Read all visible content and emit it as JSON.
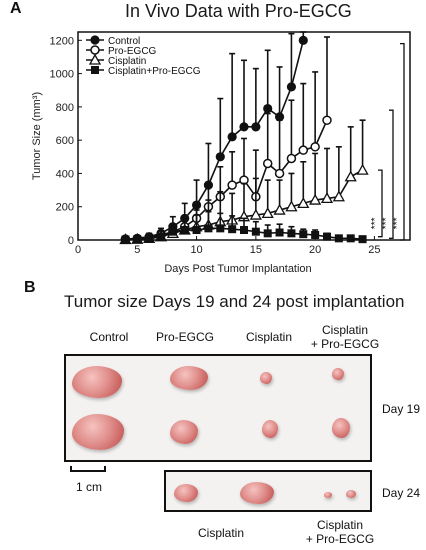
{
  "panel_a": {
    "letter": "A",
    "title": "In Vivo Data with Pro-EGCG"
  },
  "chart_data": {
    "type": "line",
    "title": "In Vivo Data with Pro-EGCG",
    "xlabel": "Days Post Tumor Implantation",
    "ylabel": "Tumor Size (mm³)",
    "xlim": [
      0,
      28
    ],
    "ylim": [
      0,
      1250
    ],
    "xticks": [
      0,
      5,
      10,
      15,
      20,
      25
    ],
    "yticks": [
      0,
      200,
      400,
      600,
      800,
      1000,
      1200
    ],
    "grid": false,
    "legend_position": "top-left",
    "series": [
      {
        "name": "Control",
        "marker": "filled-circle",
        "x": [
          4,
          5,
          6,
          7,
          8,
          9,
          10,
          11,
          12,
          13,
          14,
          15,
          16,
          17,
          18,
          19
        ],
        "y": [
          5,
          10,
          20,
          40,
          80,
          130,
          210,
          330,
          500,
          620,
          680,
          680,
          790,
          740,
          920,
          1200
        ],
        "err": [
          5,
          10,
          20,
          30,
          60,
          90,
          150,
          250,
          350,
          500,
          400,
          350,
          350,
          300,
          320,
          350
        ]
      },
      {
        "name": "Pro-EGCG",
        "marker": "open-circle",
        "x": [
          4,
          5,
          6,
          7,
          8,
          9,
          10,
          11,
          12,
          13,
          14,
          15,
          16,
          17,
          18,
          19,
          20,
          21
        ],
        "y": [
          5,
          8,
          15,
          30,
          50,
          80,
          130,
          200,
          260,
          330,
          360,
          260,
          460,
          400,
          490,
          540,
          560,
          720
        ],
        "err": [
          5,
          8,
          15,
          25,
          40,
          60,
          90,
          140,
          180,
          200,
          250,
          280,
          300,
          320,
          350,
          400,
          450,
          500
        ]
      },
      {
        "name": "Cisplatin",
        "marker": "open-triangle",
        "x": [
          4,
          5,
          6,
          7,
          8,
          9,
          10,
          11,
          12,
          13,
          14,
          15,
          16,
          17,
          18,
          19,
          20,
          21,
          22,
          23,
          24
        ],
        "y": [
          3,
          5,
          10,
          20,
          40,
          60,
          80,
          90,
          110,
          120,
          140,
          150,
          160,
          180,
          200,
          220,
          240,
          250,
          260,
          380,
          420
        ],
        "err": [
          3,
          5,
          10,
          20,
          40,
          80,
          100,
          150,
          180,
          160,
          200,
          220,
          200,
          180,
          200,
          250,
          280,
          300,
          300,
          300,
          300
        ]
      },
      {
        "name": "Cisplatin+Pro-EGCG",
        "marker": "filled-square",
        "x": [
          4,
          5,
          6,
          7,
          8,
          9,
          10,
          11,
          12,
          13,
          14,
          15,
          16,
          17,
          18,
          19,
          20,
          21,
          22,
          23,
          24
        ],
        "y": [
          3,
          5,
          8,
          20,
          50,
          60,
          60,
          70,
          70,
          65,
          60,
          50,
          40,
          45,
          40,
          35,
          30,
          20,
          10,
          10,
          5
        ],
        "err": [
          3,
          5,
          8,
          20,
          40,
          80,
          90,
          100,
          90,
          80,
          70,
          60,
          50,
          50,
          40,
          30,
          30,
          20,
          10,
          10,
          5
        ]
      }
    ],
    "significance": [
      "***",
      "***",
      "***"
    ]
  },
  "panel_b": {
    "letter": "B",
    "title": "Tumor size Days 19 and 24 post implantation",
    "columns": [
      "Control",
      "Pro-EGCG",
      "Cisplatin",
      "Cisplatin\n+ Pro-EGCG"
    ],
    "day19_label": "Day 19",
    "day24_label": "Day 24",
    "scale_label": "1 cm",
    "bottom_labels": [
      "Cisplatin",
      "Cisplatin\n+ Pro-EGCG"
    ]
  }
}
